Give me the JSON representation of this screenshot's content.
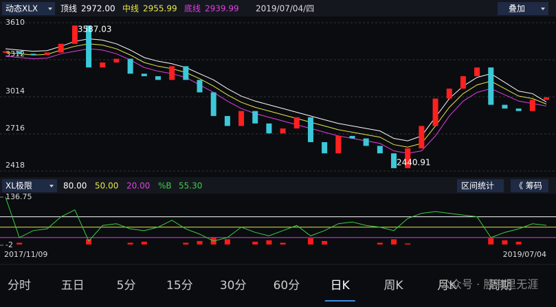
{
  "header": {
    "title": "动态XLX",
    "items": [
      {
        "label": "顶线",
        "value": "2972.00",
        "color": "#ffffff"
      },
      {
        "label": "中线",
        "value": "2955.99",
        "color": "#e8e84a"
      },
      {
        "label": "底线",
        "value": "2939.99",
        "color": "#e040e0"
      }
    ],
    "date": "2019/07/04/四",
    "button": "叠加"
  },
  "chart_data": [
    {
      "type": "candle",
      "ylim": [
        2418,
        3610
      ],
      "yticks": [
        3610,
        3312,
        3014,
        2716,
        2418
      ],
      "grid": true,
      "up_color": "#ff2020",
      "down_color": "#3cc8d8",
      "annotations": [
        {
          "text": "3587.03",
          "index": 5
        },
        {
          "text": "2440.91",
          "index": 28
        }
      ],
      "values": [
        3380,
        3360,
        3350,
        3370,
        3440,
        3587.03,
        3250,
        3290,
        3320,
        3200,
        3180,
        3150,
        3260,
        3150,
        3050,
        2860,
        2780,
        2900,
        2800,
        2720,
        2760,
        2850,
        2650,
        2560,
        2700,
        2680,
        2620,
        2560,
        2440.91,
        2600,
        2780,
        3000,
        3080,
        3180,
        3250,
        2950,
        2920,
        2900,
        2990,
        3010
      ],
      "series": [
        {
          "name": "顶线",
          "color": "#ffffff",
          "values": [
            3400,
            3390,
            3380,
            3385,
            3420,
            3460,
            3480,
            3470,
            3440,
            3390,
            3330,
            3300,
            3280,
            3250,
            3200,
            3150,
            3080,
            3020,
            2980,
            2950,
            2920,
            2890,
            2860,
            2830,
            2800,
            2780,
            2760,
            2740,
            2680,
            2660,
            2700,
            2850,
            3000,
            3100,
            3170,
            3200,
            3130,
            3060,
            3040,
            2972
          ]
        },
        {
          "name": "中线",
          "color": "#e8e84a",
          "values": [
            3370,
            3360,
            3350,
            3355,
            3390,
            3420,
            3440,
            3430,
            3400,
            3350,
            3290,
            3260,
            3240,
            3210,
            3160,
            3100,
            3030,
            2970,
            2930,
            2900,
            2870,
            2840,
            2810,
            2780,
            2750,
            2730,
            2710,
            2690,
            2630,
            2610,
            2640,
            2780,
            2930,
            3040,
            3110,
            3140,
            3080,
            3020,
            3000,
            2955.99
          ]
        },
        {
          "name": "底线",
          "color": "#e040e0",
          "values": [
            3340,
            3330,
            3320,
            3325,
            3360,
            3380,
            3400,
            3390,
            3360,
            3310,
            3250,
            3220,
            3200,
            3170,
            3110,
            3050,
            2980,
            2920,
            2880,
            2850,
            2820,
            2790,
            2760,
            2730,
            2700,
            2680,
            2660,
            2640,
            2580,
            2560,
            2580,
            2700,
            2860,
            2980,
            3050,
            3080,
            3030,
            2980,
            2960,
            2939.99
          ]
        }
      ]
    },
    {
      "type": "indicator",
      "title": "XL极限",
      "ylim": [
        -2,
        136.75
      ],
      "yticks": [
        {
          "value": 136.75,
          "label": "136.75"
        },
        -2
      ],
      "levels": [
        {
          "value": 80,
          "label": "80.00",
          "color": "#ffffff"
        },
        {
          "value": 50,
          "label": "50.00",
          "color": "#e8e84a"
        },
        {
          "value": 20,
          "label": "20.00",
          "color": "#e040e0"
        }
      ],
      "categories": [
        "2017/11/09",
        null,
        null,
        null,
        null,
        null,
        null,
        null,
        null,
        null,
        null,
        null,
        null,
        null,
        null,
        null,
        null,
        null,
        null,
        null,
        null,
        null,
        null,
        null,
        null,
        null,
        null,
        null,
        null,
        null,
        null,
        null,
        null,
        null,
        null,
        null,
        null,
        null,
        null,
        "2019/07/04"
      ],
      "series": [
        {
          "name": "%B",
          "color": "#3cd040",
          "value_label": "55.30",
          "values": [
            136.75,
            20,
            40,
            45,
            80,
            100,
            10,
            55,
            60,
            45,
            40,
            50,
            70,
            45,
            30,
            10,
            20,
            50,
            35,
            25,
            40,
            55,
            25,
            40,
            60,
            65,
            55,
            50,
            40,
            75,
            90,
            95,
            90,
            85,
            80,
            20,
            35,
            45,
            60,
            55.3
          ]
        },
        {
          "color": "#ff1a1a",
          "values": [
            0,
            5,
            0,
            0,
            0,
            0,
            15,
            0,
            0,
            5,
            8,
            0,
            0,
            5,
            10,
            20,
            15,
            0,
            8,
            12,
            5,
            0,
            18,
            10,
            0,
            0,
            0,
            5,
            15,
            3,
            0,
            0,
            0,
            0,
            0,
            18,
            12,
            8,
            0,
            0
          ]
        }
      ],
      "buttons": [
        "区间统计",
        "《 筹码"
      ]
    }
  ],
  "tabs": {
    "items": [
      "分时",
      "五日",
      "5分",
      "15分",
      "30分",
      "60分",
      "日K",
      "周K",
      "月K",
      "周期"
    ],
    "active": 6
  },
  "watermark": "公众号 · 股海里无涯"
}
